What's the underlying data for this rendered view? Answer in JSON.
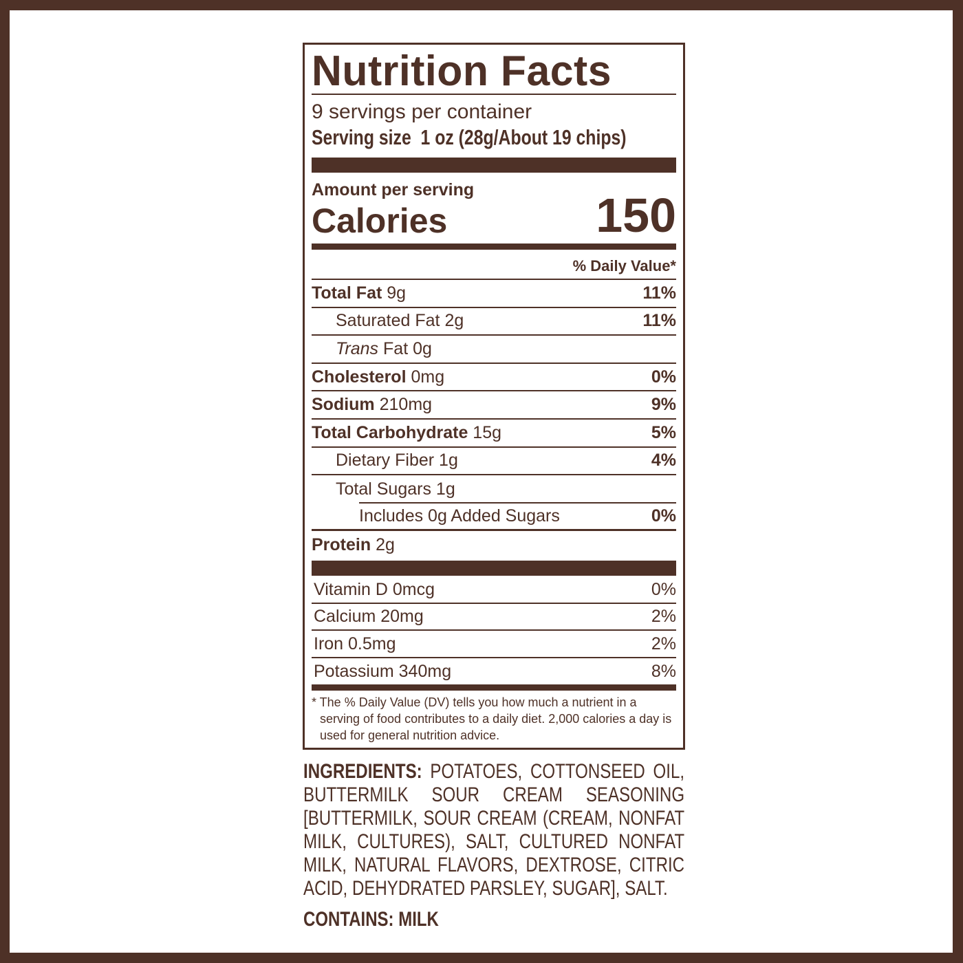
{
  "colors": {
    "brand": "#4e3127",
    "background": "#ffffff"
  },
  "label": {
    "title": "Nutrition Facts",
    "servings_per_container": "9 servings per container",
    "serving_size_label": "Serving size",
    "serving_size_value": "1 oz (28g/About 19 chips)",
    "amount_per_serving": "Amount per serving",
    "calories_label": "Calories",
    "calories_value": "150",
    "daily_value_header": "% Daily Value*",
    "nutrients": [
      {
        "name": "Total Fat",
        "amount": "9g",
        "dv": "11%"
      },
      {
        "name": "Saturated Fat",
        "amount": "2g",
        "dv": "11%"
      },
      {
        "name": "Trans",
        "name_rest": "Fat",
        "amount": "0g",
        "dv": ""
      },
      {
        "name": "Cholesterol",
        "amount": "0mg",
        "dv": "0%"
      },
      {
        "name": "Sodium",
        "amount": "210mg",
        "dv": "9%"
      },
      {
        "name": "Total Carbohydrate",
        "amount": "15g",
        "dv": "5%"
      },
      {
        "name": "Dietary Fiber",
        "amount": "1g",
        "dv": "4%"
      },
      {
        "name": "Total Sugars",
        "amount": "1g",
        "dv": ""
      },
      {
        "name": "Includes 0g Added Sugars",
        "amount": "",
        "dv": "0%"
      },
      {
        "name": "Protein",
        "amount": "2g",
        "dv": ""
      }
    ],
    "vitamins": [
      {
        "name": "Vitamin D 0mcg",
        "dv": "0%"
      },
      {
        "name": "Calcium 20mg",
        "dv": "2%"
      },
      {
        "name": "Iron 0.5mg",
        "dv": "2%"
      },
      {
        "name": "Potassium 340mg",
        "dv": "8%"
      }
    ],
    "footnote": [
      "* The % Daily Value (DV) tells you how much a nutrient in a serving of food contributes to a daily diet. 2,000 calories a day is used for general nutrition advice."
    ]
  },
  "ingredients": {
    "label": "INGREDIENTS:",
    "text": "POTATOES, COTTONSEED OIL, BUTTERMILK SOUR CREAM SEASONING [BUTTERMILK, SOUR CREAM (CREAM, NONFAT MILK, CULTURES), SALT, CULTURED NONFAT MILK, NATURAL FLAVORS, DEXTROSE, CITRIC ACID, DEHYDRATED PARSLEY, SUGAR], SALT.",
    "contains": "CONTAINS: MILK"
  }
}
